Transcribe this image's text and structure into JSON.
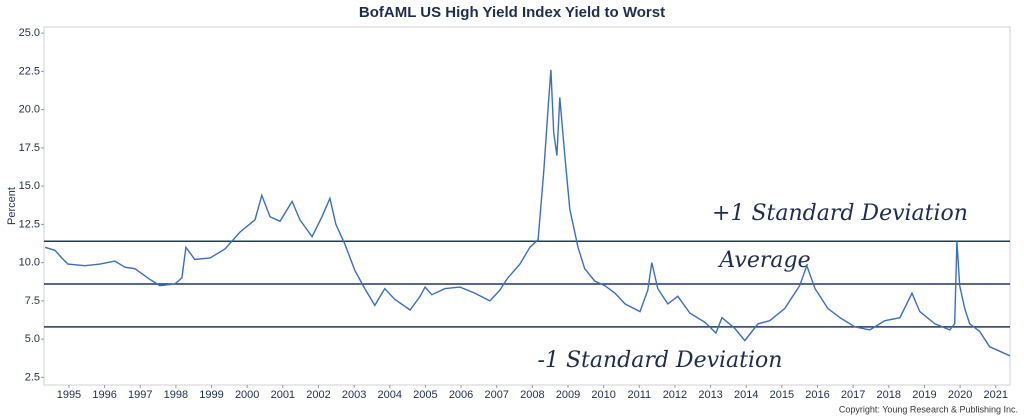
{
  "chart_data": {
    "type": "line",
    "title": "BofAML US High Yield Index Yield to Worst",
    "y_label": "Percent",
    "copyright": "Copyright: Young Research & Publishing Inc.",
    "x": [
      1994.83,
      1995.11,
      1995.3,
      1995.47,
      1995.95,
      1996.37,
      1996.79,
      1997.07,
      1997.35,
      1997.77,
      1998.05,
      1998.47,
      1998.67,
      1998.78,
      1999.03,
      1999.46,
      1999.88,
      2000.3,
      2000.72,
      2000.91,
      2001.14,
      2001.42,
      2001.76,
      2001.98,
      2002.32,
      2002.6,
      2002.82,
      2002.99,
      2003.24,
      2003.52,
      2003.8,
      2004.08,
      2004.36,
      2004.64,
      2005.07,
      2005.35,
      2005.49,
      2005.68,
      2006.05,
      2006.47,
      2006.89,
      2007.31,
      2007.59,
      2007.81,
      2008.15,
      2008.43,
      2008.66,
      2008.82,
      2008.94,
      2009.02,
      2009.1,
      2009.19,
      2009.27,
      2009.41,
      2009.55,
      2009.78,
      2009.97,
      2010.25,
      2010.53,
      2010.82,
      2011.1,
      2011.52,
      2011.74,
      2011.85,
      2012.02,
      2012.3,
      2012.58,
      2012.92,
      2013.34,
      2013.65,
      2013.82,
      2014.18,
      2014.46,
      2014.83,
      2015.16,
      2015.58,
      2016.0,
      2016.2,
      2016.43,
      2016.79,
      2017.13,
      2017.55,
      2017.97,
      2018.39,
      2018.81,
      2019.15,
      2019.37,
      2019.79,
      2020.21,
      2020.35,
      2020.41,
      2020.49,
      2020.63,
      2020.77,
      2021.05,
      2021.33,
      2021.62,
      2021.9
    ],
    "series": [
      {
        "name": "Yield to Worst",
        "color": "#3a6fc0",
        "values": [
          11.0,
          10.8,
          10.3,
          9.9,
          9.8,
          9.9,
          10.1,
          9.7,
          9.6,
          8.9,
          8.5,
          8.6,
          9.0,
          11.0,
          10.2,
          10.3,
          10.9,
          12.0,
          12.8,
          14.4,
          13.0,
          12.7,
          14.0,
          12.8,
          11.7,
          13.0,
          14.2,
          12.5,
          11.2,
          9.5,
          8.3,
          7.2,
          8.3,
          7.6,
          6.9,
          7.8,
          8.4,
          7.9,
          8.3,
          8.4,
          8.0,
          7.5,
          8.2,
          9.0,
          9.9,
          11.0,
          11.5,
          16.0,
          20.0,
          22.6,
          18.5,
          17.0,
          20.8,
          17.0,
          13.5,
          11.0,
          9.6,
          8.8,
          8.5,
          8.0,
          7.3,
          6.8,
          8.2,
          10.0,
          8.3,
          7.3,
          7.8,
          6.7,
          6.1,
          5.4,
          6.4,
          5.7,
          4.9,
          6.0,
          6.2,
          7.0,
          8.5,
          9.8,
          8.3,
          7.0,
          6.4,
          5.8,
          5.6,
          6.2,
          6.4,
          8.0,
          6.8,
          6.0,
          5.6,
          6.0,
          11.4,
          8.5,
          7.0,
          6.0,
          5.5,
          4.5,
          4.2,
          3.9
        ]
      }
    ],
    "reference_lines": [
      {
        "label": "+1 Standard Deviation",
        "value": 11.4,
        "color": "#1f3864"
      },
      {
        "label": "Average",
        "value": 8.6,
        "color": "#1f3864"
      },
      {
        "label": "-1 Standard Deviation",
        "value": 5.8,
        "color": "#1f3864"
      }
    ],
    "xlim": [
      1994.8,
      2021.9
    ],
    "ylim": [
      2.0,
      25.4
    ],
    "yticks": [
      {
        "value": 2.5,
        "label": "2.5"
      },
      {
        "value": 5,
        "label": "5.0"
      },
      {
        "value": 7.5,
        "label": "7.5"
      },
      {
        "value": 10,
        "label": "10.0"
      },
      {
        "value": 12.5,
        "label": "12.5"
      },
      {
        "value": 15,
        "label": "15.0"
      },
      {
        "value": 17.5,
        "label": "17.5"
      },
      {
        "value": 20,
        "label": "20.0"
      },
      {
        "value": 22.5,
        "label": "22.5"
      },
      {
        "value": 25,
        "label": "25.0"
      }
    ],
    "xticks": [
      {
        "value": 1995.5,
        "label": "1995"
      },
      {
        "value": 1996.5,
        "label": "1996"
      },
      {
        "value": 1997.5,
        "label": "1997"
      },
      {
        "value": 1998.5,
        "label": "1998"
      },
      {
        "value": 1999.5,
        "label": "1999"
      },
      {
        "value": 2000.5,
        "label": "2000"
      },
      {
        "value": 2001.5,
        "label": "2001"
      },
      {
        "value": 2002.5,
        "label": "2002"
      },
      {
        "value": 2003.5,
        "label": "2003"
      },
      {
        "value": 2004.5,
        "label": "2004"
      },
      {
        "value": 2005.5,
        "label": "2005"
      },
      {
        "value": 2006.5,
        "label": "2006"
      },
      {
        "value": 2007.5,
        "label": "2007"
      },
      {
        "value": 2008.5,
        "label": "2008"
      },
      {
        "value": 2009.5,
        "label": "2009"
      },
      {
        "value": 2010.5,
        "label": "2010"
      },
      {
        "value": 2011.5,
        "label": "2011"
      },
      {
        "value": 2012.5,
        "label": "2012"
      },
      {
        "value": 2013.5,
        "label": "2013"
      },
      {
        "value": 2014.5,
        "label": "2014"
      },
      {
        "value": 2015.5,
        "label": "2015"
      },
      {
        "value": 2016.5,
        "label": "2016"
      },
      {
        "value": 2017.5,
        "label": "2017"
      },
      {
        "value": 2018.5,
        "label": "2018"
      },
      {
        "value": 2019.5,
        "label": "2019"
      },
      {
        "value": 2020.5,
        "label": "2020"
      },
      {
        "value": 2021.5,
        "label": "2021"
      }
    ],
    "grid": false
  }
}
